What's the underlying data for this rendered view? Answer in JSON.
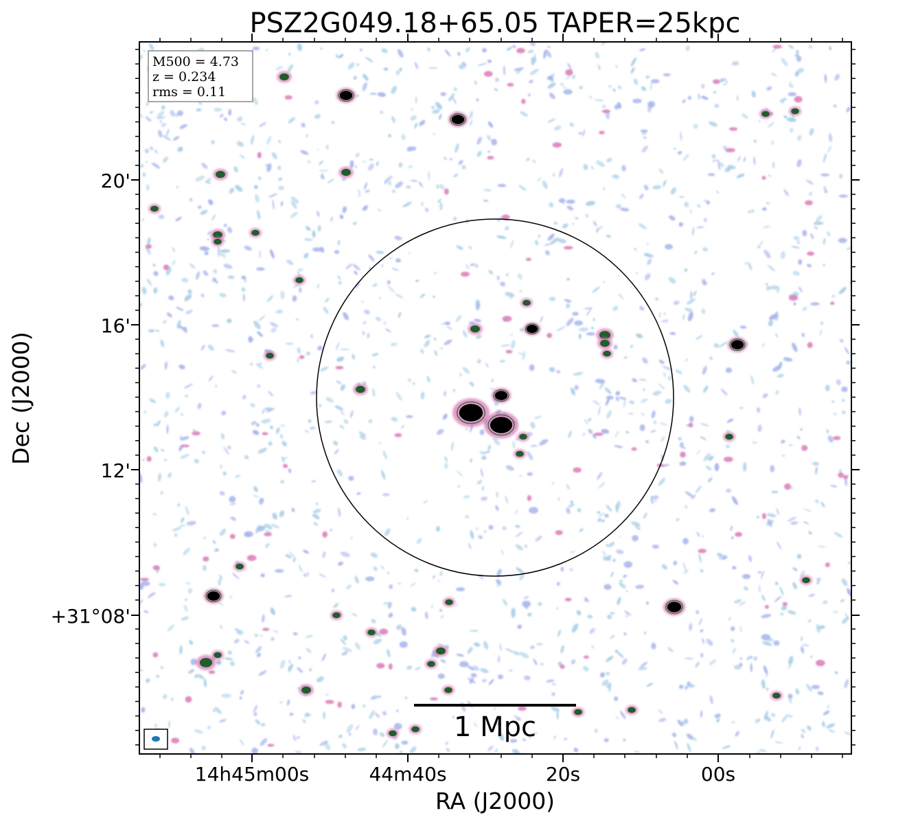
{
  "title": "PSZ2G049.18+65.05 TAPER=25kpc",
  "axes": {
    "xlabel": "RA (J2000)",
    "ylabel": "Dec (J2000)",
    "x_ticks": [
      "14h45m00s",
      "44m40s",
      "20s",
      "00s"
    ],
    "y_ticks": [
      "20'",
      "16'",
      "12'",
      "+31°08'"
    ]
  },
  "info_box": {
    "lines": [
      "M500 = 4.73",
      "z = 0.234",
      "rms = 0.11"
    ]
  },
  "scale_bar": {
    "label": "1 Mpc"
  },
  "colors": {
    "frame": "#000000",
    "info_border": "#888888",
    "beam": "#1f77b4",
    "noise_light": "#a9cfe6",
    "noise_mid": "#a7b4ec",
    "noise_pink": "#d97ab6",
    "source_core": "#000000",
    "source_green": "#1f5e2c"
  },
  "sources": [
    {
      "ra": "14h44m29s",
      "dec": "+31°13'40\"",
      "type": "bright-core"
    },
    {
      "ra": "14h44m27s",
      "dec": "+31°13'15\"",
      "type": "bright-core"
    },
    {
      "ra": "14h44m27s",
      "dec": "+31°14'10\"",
      "type": "core"
    }
  ]
}
